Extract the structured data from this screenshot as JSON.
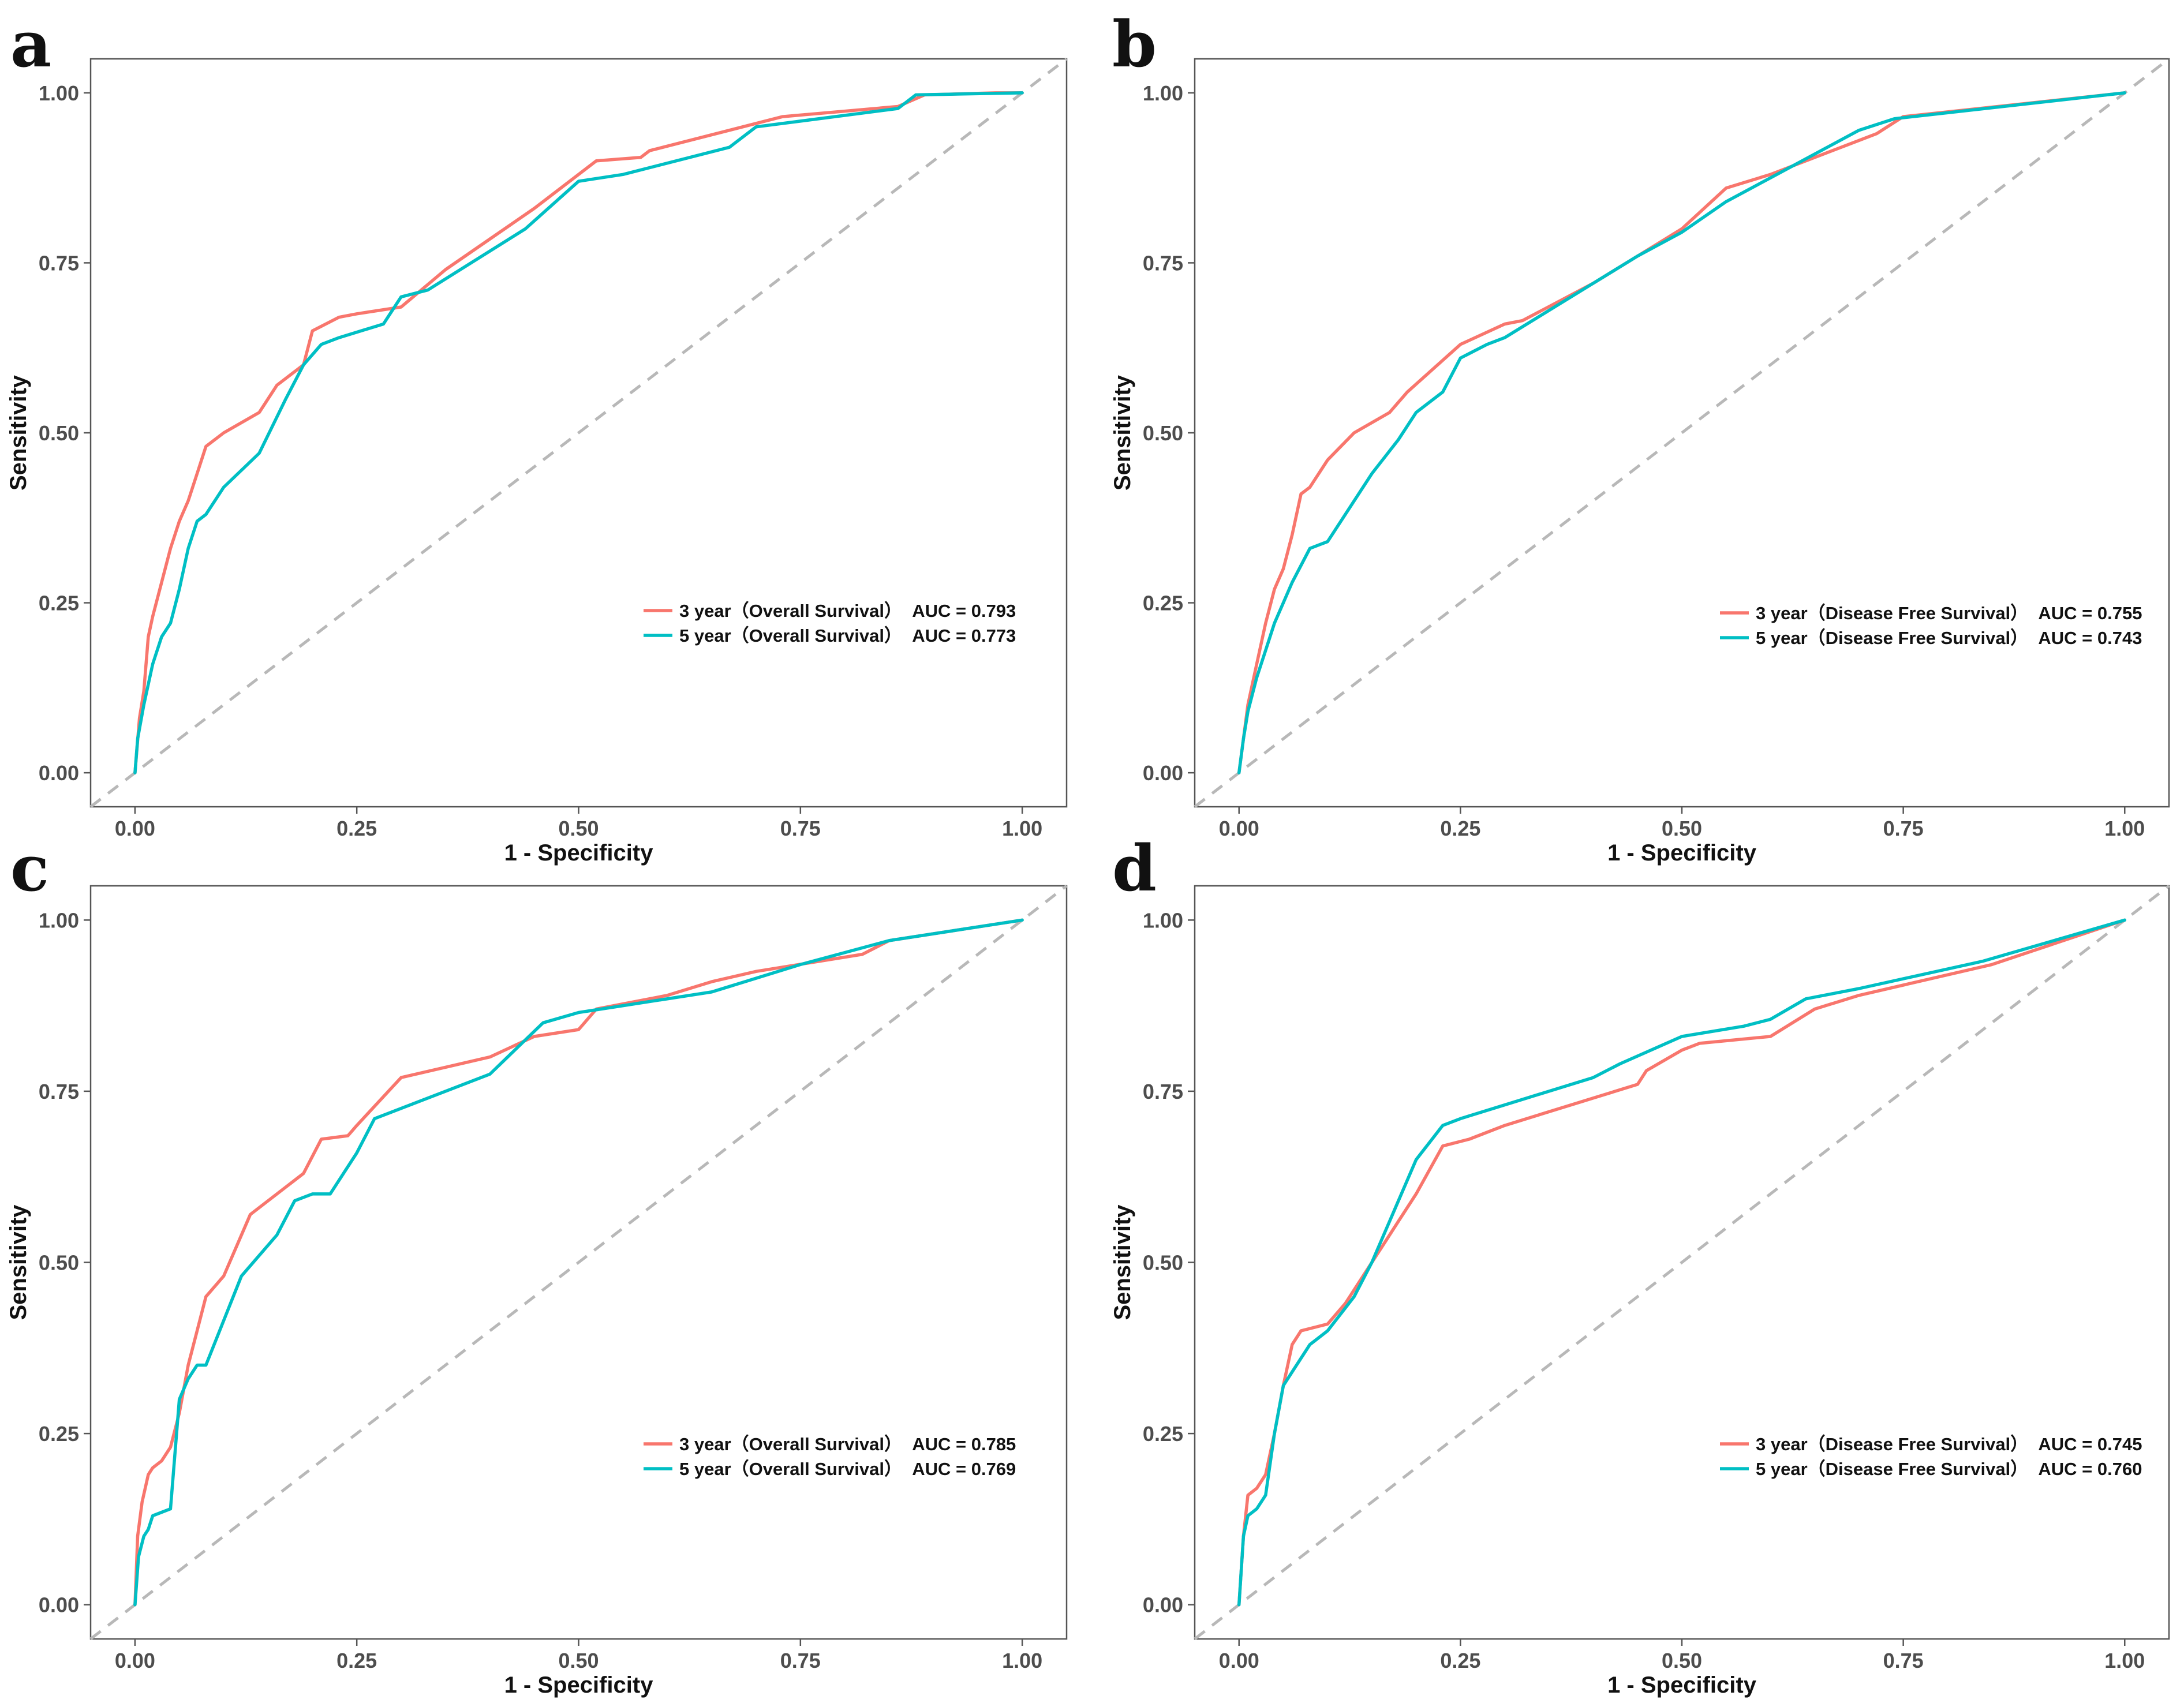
{
  "figure": {
    "panels": [
      "a",
      "b",
      "c",
      "d"
    ]
  },
  "chart_data": [
    {
      "panel": "a",
      "type": "line",
      "xlabel": "1 - Specificity",
      "ylabel": "Sensitivity",
      "xlim": [
        0,
        1
      ],
      "ylim": [
        0,
        1
      ],
      "xticks": [
        "0.00",
        "0.25",
        "0.50",
        "0.75",
        "1.00"
      ],
      "yticks": [
        "0.00",
        "0.25",
        "0.50",
        "0.75",
        "1.00"
      ],
      "reference_line": "diagonal",
      "legend_position": "bottom-right",
      "series": [
        {
          "name": "3 year（Overall Survival）",
          "auc_label": "AUC = 0.793",
          "color": "#f8766d",
          "x": [
            0,
            0.005,
            0.01,
            0.015,
            0.02,
            0.03,
            0.04,
            0.05,
            0.06,
            0.07,
            0.08,
            0.1,
            0.14,
            0.16,
            0.19,
            0.2,
            0.23,
            0.25,
            0.3,
            0.35,
            0.45,
            0.52,
            0.57,
            0.58,
            0.73,
            0.86,
            0.89,
            0.97,
            1
          ],
          "y": [
            0,
            0.08,
            0.12,
            0.2,
            0.23,
            0.28,
            0.33,
            0.37,
            0.4,
            0.44,
            0.48,
            0.5,
            0.53,
            0.57,
            0.6,
            0.65,
            0.67,
            0.675,
            0.685,
            0.74,
            0.83,
            0.9,
            0.905,
            0.915,
            0.965,
            0.98,
            0.997,
            1,
            1
          ]
        },
        {
          "name": "5 year（Overall Survival）",
          "auc_label": "AUC = 0.773",
          "color": "#00bfc4",
          "x": [
            0,
            0.003,
            0.01,
            0.02,
            0.03,
            0.04,
            0.05,
            0.06,
            0.07,
            0.08,
            0.1,
            0.14,
            0.17,
            0.19,
            0.21,
            0.23,
            0.28,
            0.3,
            0.33,
            0.44,
            0.5,
            0.55,
            0.67,
            0.7,
            0.86,
            0.88,
            1
          ],
          "y": [
            0,
            0.05,
            0.1,
            0.16,
            0.2,
            0.22,
            0.27,
            0.33,
            0.37,
            0.38,
            0.42,
            0.47,
            0.55,
            0.6,
            0.63,
            0.64,
            0.66,
            0.7,
            0.71,
            0.8,
            0.87,
            0.88,
            0.92,
            0.95,
            0.977,
            0.997,
            1
          ]
        }
      ]
    },
    {
      "panel": "b",
      "type": "line",
      "xlabel": "1 - Specificity",
      "ylabel": "Sensitivity",
      "xlim": [
        0,
        1
      ],
      "ylim": [
        0,
        1
      ],
      "xticks": [
        "0.00",
        "0.25",
        "0.50",
        "0.75",
        "1.00"
      ],
      "yticks": [
        "0.00",
        "0.25",
        "0.50",
        "0.75",
        "1.00"
      ],
      "reference_line": "diagonal",
      "legend_position": "bottom-right",
      "series": [
        {
          "name": "3 year（Disease Free Survival）",
          "auc_label": "AUC = 0.755",
          "color": "#f8766d",
          "x": [
            0,
            0.005,
            0.01,
            0.02,
            0.03,
            0.04,
            0.05,
            0.06,
            0.07,
            0.08,
            0.09,
            0.1,
            0.13,
            0.17,
            0.19,
            0.25,
            0.3,
            0.32,
            0.4,
            0.45,
            0.5,
            0.55,
            0.6,
            0.65,
            0.72,
            0.75,
            1
          ],
          "y": [
            0,
            0.05,
            0.1,
            0.16,
            0.22,
            0.27,
            0.3,
            0.35,
            0.41,
            0.42,
            0.44,
            0.46,
            0.5,
            0.53,
            0.56,
            0.63,
            0.66,
            0.665,
            0.72,
            0.76,
            0.8,
            0.86,
            0.88,
            0.905,
            0.94,
            0.965,
            1
          ]
        },
        {
          "name": "5 year（Disease Free Survival）",
          "auc_label": "AUC = 0.743",
          "color": "#00bfc4",
          "x": [
            0,
            0.005,
            0.01,
            0.02,
            0.03,
            0.04,
            0.05,
            0.06,
            0.08,
            0.1,
            0.12,
            0.15,
            0.18,
            0.2,
            0.23,
            0.25,
            0.28,
            0.3,
            0.35,
            0.4,
            0.45,
            0.5,
            0.55,
            0.6,
            0.65,
            0.7,
            0.74,
            1
          ],
          "y": [
            0,
            0.05,
            0.09,
            0.14,
            0.18,
            0.22,
            0.25,
            0.28,
            0.33,
            0.34,
            0.38,
            0.44,
            0.49,
            0.53,
            0.56,
            0.61,
            0.63,
            0.64,
            0.68,
            0.72,
            0.76,
            0.795,
            0.84,
            0.875,
            0.91,
            0.945,
            0.962,
            1
          ]
        }
      ]
    },
    {
      "panel": "c",
      "type": "line",
      "xlabel": "1 - Specificity",
      "ylabel": "Sensitivity",
      "xlim": [
        0,
        1
      ],
      "ylim": [
        0,
        1
      ],
      "xticks": [
        "0.00",
        "0.25",
        "0.50",
        "0.75",
        "1.00"
      ],
      "yticks": [
        "0.00",
        "0.25",
        "0.50",
        "0.75",
        "1.00"
      ],
      "reference_line": "diagonal",
      "legend_position": "bottom-right",
      "series": [
        {
          "name": "3 year（Overall Survival）",
          "auc_label": "AUC = 0.785",
          "color": "#f8766d",
          "x": [
            0,
            0.003,
            0.008,
            0.015,
            0.02,
            0.03,
            0.04,
            0.05,
            0.06,
            0.07,
            0.08,
            0.1,
            0.13,
            0.17,
            0.19,
            0.21,
            0.24,
            0.25,
            0.3,
            0.4,
            0.45,
            0.5,
            0.52,
            0.6,
            0.65,
            0.7,
            0.82,
            0.85,
            1
          ],
          "y": [
            0,
            0.1,
            0.15,
            0.19,
            0.2,
            0.21,
            0.23,
            0.28,
            0.35,
            0.4,
            0.45,
            0.48,
            0.57,
            0.61,
            0.63,
            0.68,
            0.685,
            0.7,
            0.77,
            0.8,
            0.83,
            0.84,
            0.87,
            0.89,
            0.91,
            0.925,
            0.95,
            0.97,
            1
          ]
        },
        {
          "name": "5 year（Overall Survival）",
          "auc_label": "AUC = 0.769",
          "color": "#00bfc4",
          "x": [
            0,
            0.004,
            0.01,
            0.015,
            0.02,
            0.04,
            0.05,
            0.06,
            0.07,
            0.08,
            0.12,
            0.16,
            0.18,
            0.2,
            0.22,
            0.25,
            0.27,
            0.4,
            0.42,
            0.46,
            0.5,
            0.55,
            0.65,
            0.75,
            0.85,
            1
          ],
          "y": [
            0,
            0.07,
            0.1,
            0.11,
            0.13,
            0.14,
            0.3,
            0.33,
            0.35,
            0.35,
            0.48,
            0.54,
            0.59,
            0.6,
            0.6,
            0.66,
            0.71,
            0.775,
            0.8,
            0.85,
            0.865,
            0.875,
            0.895,
            0.935,
            0.97,
            1
          ]
        }
      ]
    },
    {
      "panel": "d",
      "type": "line",
      "xlabel": "1 - Specificity",
      "ylabel": "Sensitivity",
      "xlim": [
        0,
        1
      ],
      "ylim": [
        0,
        1
      ],
      "xticks": [
        "0.00",
        "0.25",
        "0.50",
        "0.75",
        "1.00"
      ],
      "yticks": [
        "0.00",
        "0.25",
        "0.50",
        "0.75",
        "1.00"
      ],
      "reference_line": "diagonal",
      "legend_position": "bottom-right",
      "series": [
        {
          "name": "3 year（Disease Free Survival）",
          "auc_label": "AUC = 0.745",
          "color": "#f8766d",
          "x": [
            0,
            0.005,
            0.01,
            0.02,
            0.03,
            0.04,
            0.05,
            0.06,
            0.07,
            0.1,
            0.12,
            0.14,
            0.16,
            0.18,
            0.2,
            0.23,
            0.26,
            0.3,
            0.45,
            0.46,
            0.5,
            0.52,
            0.6,
            0.65,
            0.7,
            0.85,
            1
          ],
          "y": [
            0,
            0.1,
            0.16,
            0.17,
            0.19,
            0.25,
            0.32,
            0.38,
            0.4,
            0.41,
            0.44,
            0.48,
            0.52,
            0.56,
            0.6,
            0.67,
            0.68,
            0.7,
            0.76,
            0.78,
            0.81,
            0.82,
            0.83,
            0.87,
            0.89,
            0.935,
            1
          ]
        },
        {
          "name": "5 year（Disease Free Survival）",
          "auc_label": "AUC = 0.760",
          "color": "#00bfc4",
          "x": [
            0,
            0.005,
            0.01,
            0.02,
            0.03,
            0.04,
            0.05,
            0.06,
            0.08,
            0.1,
            0.13,
            0.15,
            0.17,
            0.2,
            0.23,
            0.25,
            0.3,
            0.4,
            0.43,
            0.5,
            0.57,
            0.6,
            0.64,
            0.7,
            0.84,
            1
          ],
          "y": [
            0,
            0.1,
            0.13,
            0.14,
            0.16,
            0.25,
            0.32,
            0.34,
            0.38,
            0.4,
            0.45,
            0.5,
            0.56,
            0.65,
            0.7,
            0.71,
            0.73,
            0.77,
            0.79,
            0.83,
            0.845,
            0.855,
            0.885,
            0.9,
            0.94,
            1
          ]
        }
      ]
    }
  ]
}
